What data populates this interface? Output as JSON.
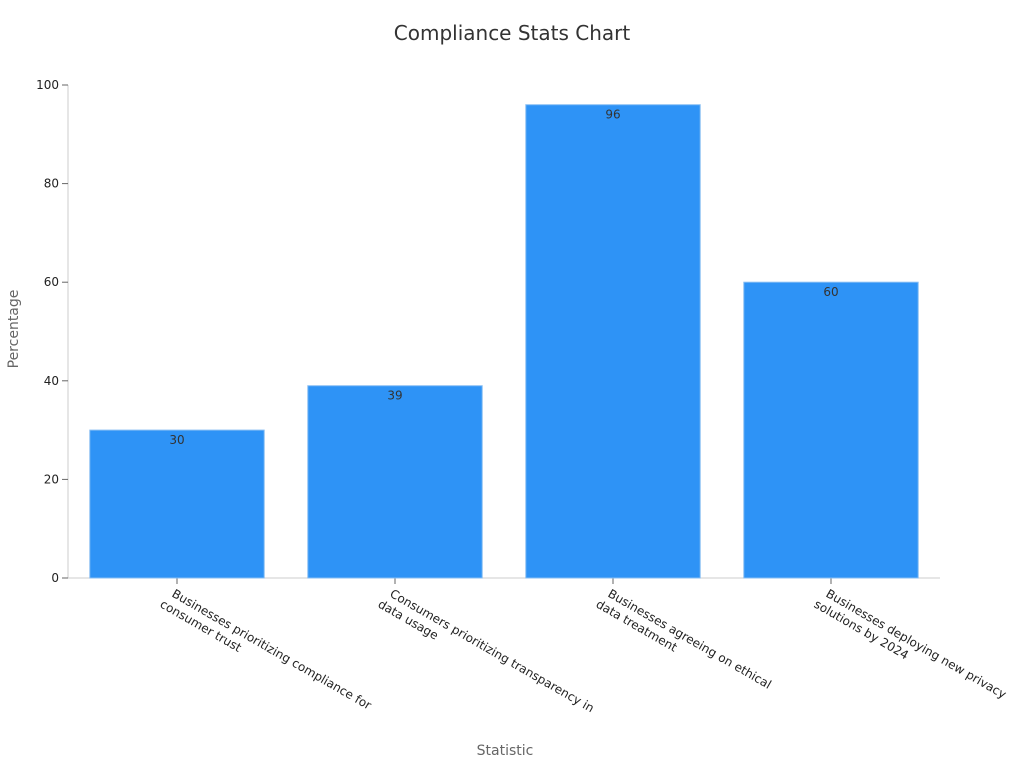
{
  "chart_data": {
    "type": "bar",
    "title": "Compliance Stats Chart",
    "xlabel": "Statistic",
    "ylabel": "Percentage",
    "ylim": [
      0,
      100
    ],
    "yticks": [
      0,
      20,
      40,
      60,
      80,
      100
    ],
    "grid": false,
    "categories": [
      [
        "Businesses prioritizing compliance for",
        "consumer trust"
      ],
      [
        "Consumers prioritizing transparency in",
        "data usage"
      ],
      [
        "Businesses agreeing on ethical",
        "data treatment"
      ],
      [
        "Businesses deploying new privacy",
        "solutions by 2024"
      ]
    ],
    "values": [
      30,
      39,
      96,
      60
    ],
    "data_labels": [
      "30",
      "39",
      "96",
      "60"
    ],
    "colors": {
      "bar": "#2e93f6",
      "axis": "#cccccc"
    }
  }
}
